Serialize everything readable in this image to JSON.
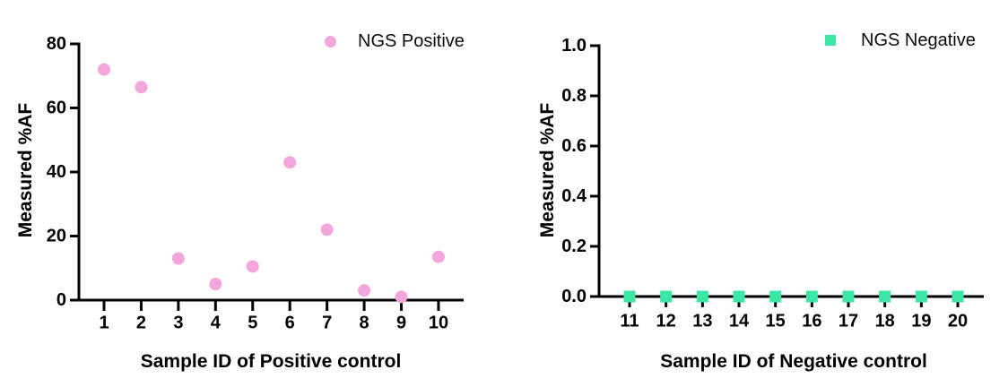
{
  "background_color": "#FFFFFF",
  "axis_color": "#000000",
  "text_color": "#000000",
  "chart_data": [
    {
      "type": "scatter",
      "series_name": "NGS Positive",
      "marker": "circle",
      "marker_color": "#F3A6DC",
      "xlabel": "Sample ID of Positive control",
      "ylabel": "Measured %AF",
      "categories": [
        1,
        2,
        3,
        4,
        5,
        6,
        7,
        8,
        9,
        10
      ],
      "values": [
        72,
        66.5,
        13,
        5,
        10.5,
        43,
        22,
        3,
        1,
        13.5
      ],
      "ylim": [
        0,
        80
      ],
      "ytick_step": 20,
      "ytick_decimals": 0,
      "grid": false,
      "legend_position": "top-right"
    },
    {
      "type": "scatter",
      "series_name": "NGS Negative",
      "marker": "square",
      "marker_color": "#3EE6A5",
      "xlabel": "Sample ID of Negative control",
      "ylabel": "Measured %AF",
      "categories": [
        11,
        12,
        13,
        14,
        15,
        16,
        17,
        18,
        19,
        20
      ],
      "values": [
        0,
        0,
        0,
        0,
        0,
        0,
        0,
        0,
        0,
        0
      ],
      "ylim": [
        0,
        1
      ],
      "ytick_step": 0.2,
      "ytick_decimals": 1,
      "grid": false,
      "legend_position": "top-right"
    }
  ]
}
